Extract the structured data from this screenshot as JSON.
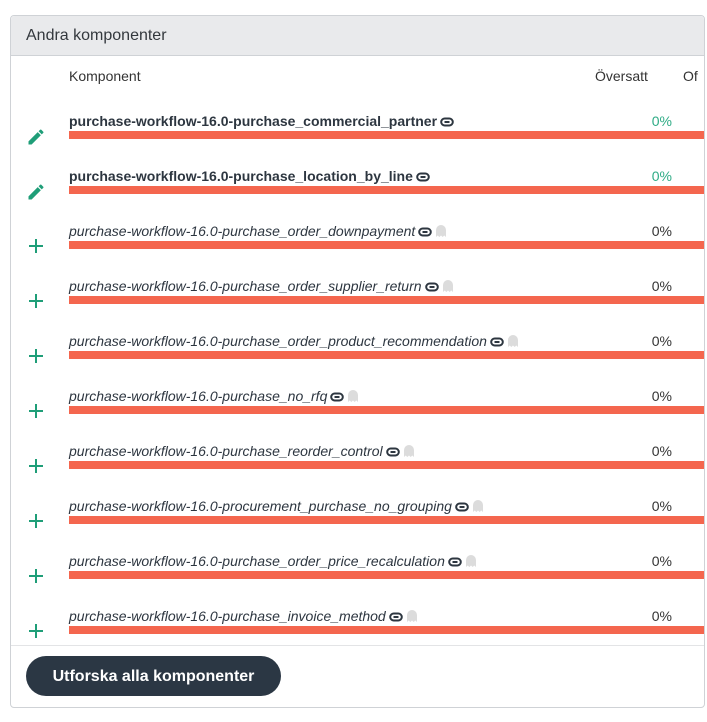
{
  "panel": {
    "title": "Andra komponenter"
  },
  "columns": {
    "component": "Komponent",
    "translated": "Översatt",
    "other": "Of"
  },
  "rows": [
    {
      "name": "purchase-workflow-16.0-purchase_commercial_partner",
      "percent": "0%",
      "icon": "pencil-icon",
      "style": "bold",
      "ghost": false,
      "progress": 0
    },
    {
      "name": "purchase-workflow-16.0-purchase_location_by_line",
      "percent": "0%",
      "icon": "pencil-icon",
      "style": "bold",
      "ghost": false,
      "progress": 0
    },
    {
      "name": "purchase-workflow-16.0-purchase_order_downpayment",
      "percent": "0%",
      "icon": "plus-icon",
      "style": "italic",
      "ghost": true,
      "progress": 0
    },
    {
      "name": "purchase-workflow-16.0-purchase_order_supplier_return",
      "percent": "0%",
      "icon": "plus-icon",
      "style": "italic",
      "ghost": true,
      "progress": 0
    },
    {
      "name": "purchase-workflow-16.0-purchase_order_product_recommendation",
      "percent": "0%",
      "icon": "plus-icon",
      "style": "italic",
      "ghost": true,
      "progress": 0
    },
    {
      "name": "purchase-workflow-16.0-purchase_no_rfq",
      "percent": "0%",
      "icon": "plus-icon",
      "style": "italic",
      "ghost": true,
      "progress": 0
    },
    {
      "name": "purchase-workflow-16.0-purchase_reorder_control",
      "percent": "0%",
      "icon": "plus-icon",
      "style": "italic",
      "ghost": true,
      "progress": 0
    },
    {
      "name": "purchase-workflow-16.0-procurement_purchase_no_grouping",
      "percent": "0%",
      "icon": "plus-icon",
      "style": "italic",
      "ghost": true,
      "progress": 0
    },
    {
      "name": "purchase-workflow-16.0-purchase_order_price_recalculation",
      "percent": "0%",
      "icon": "plus-icon",
      "style": "italic",
      "ghost": true,
      "progress": 0
    },
    {
      "name": "purchase-workflow-16.0-purchase_invoice_method",
      "percent": "0%",
      "icon": "plus-icon",
      "style": "italic",
      "ghost": true,
      "progress": 0
    }
  ],
  "footer": {
    "button_label": "Utforska alla komponenter"
  },
  "colors": {
    "accent": "#1f9e78",
    "bar_untranslated": "#f4664e",
    "button": "#2b3744"
  }
}
